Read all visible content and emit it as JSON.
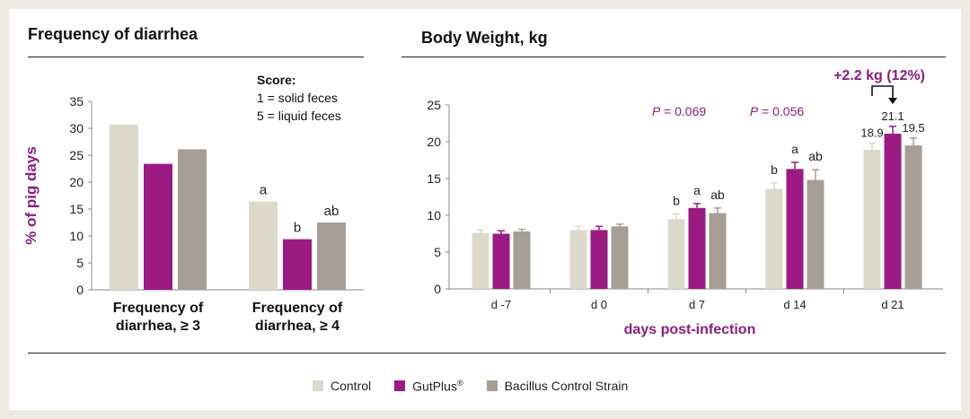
{
  "colors": {
    "control": "#dcd8cb",
    "gutplus": "#9b1b82",
    "bacillus": "#a69d95",
    "accent": "#8b1e7c"
  },
  "legend": {
    "control": "Control",
    "gutplus": "GutPlus",
    "gutplus_mark": "®",
    "bacillus": "Bacillus Control Strain"
  },
  "chart_data": [
    {
      "type": "bar",
      "title": "Frequency of diarrhea",
      "ylabel": "% of pig days",
      "ylim": [
        0,
        35
      ],
      "yticks": [
        0,
        5,
        10,
        15,
        20,
        25,
        30,
        35
      ],
      "categories": [
        [
          "Frequency of",
          "diarrhea, ≥ 3"
        ],
        [
          "Frequency of",
          "diarrhea, ≥ 4"
        ]
      ],
      "series": [
        {
          "name": "Control",
          "values": [
            30.7,
            16.4
          ],
          "letters": [
            "",
            "a"
          ]
        },
        {
          "name": "GutPlus®",
          "values": [
            23.4,
            9.4
          ],
          "letters": [
            "",
            "b"
          ]
        },
        {
          "name": "Bacillus Control Strain",
          "values": [
            26.1,
            12.5
          ],
          "letters": [
            "",
            "ab"
          ]
        }
      ],
      "score_note": [
        "Score:",
        "1 = solid feces",
        "5 = liquid feces"
      ]
    },
    {
      "type": "bar",
      "title": "Body Weight, kg",
      "xlabel": "days post-infection",
      "ylim": [
        0,
        25
      ],
      "yticks": [
        0,
        5,
        10,
        15,
        20,
        25
      ],
      "categories": [
        "d -7",
        "d 0",
        "d 7",
        "d 14",
        "d 21"
      ],
      "series": [
        {
          "name": "Control",
          "values": [
            7.6,
            8.0,
            9.5,
            13.6,
            18.9
          ],
          "errors": [
            0.4,
            0.5,
            0.7,
            0.8,
            0.9
          ],
          "letters": [
            "",
            "",
            "b",
            "b",
            ""
          ]
        },
        {
          "name": "GutPlus®",
          "values": [
            7.5,
            8.0,
            11.0,
            16.3,
            21.1
          ],
          "errors": [
            0.4,
            0.5,
            0.6,
            0.9,
            1.0
          ],
          "letters": [
            "",
            "",
            "a",
            "a",
            ""
          ]
        },
        {
          "name": "Bacillus Control Strain",
          "values": [
            7.8,
            8.5,
            10.3,
            14.8,
            19.5
          ],
          "errors": [
            0.3,
            0.3,
            0.7,
            1.4,
            1.0
          ],
          "letters": [
            "",
            "",
            "ab",
            "ab",
            ""
          ]
        }
      ],
      "value_labels": [
        "18.9",
        "21.1",
        "19.5"
      ],
      "p_values": [
        {
          "category": "d 7",
          "label": "P",
          "value": " = 0.069"
        },
        {
          "category": "d 14",
          "label": "P",
          "value": " = 0.056"
        }
      ],
      "annotation": "+2.2 kg (12%)"
    }
  ]
}
